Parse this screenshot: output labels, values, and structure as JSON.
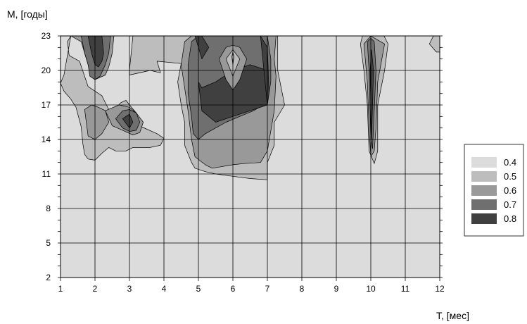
{
  "chart_data": {
    "type": "heatmap",
    "title": "",
    "xlabel": "T, [мес]",
    "ylabel": "M, [годы]",
    "xlim": [
      1,
      12
    ],
    "ylim": [
      2,
      23
    ],
    "x_ticks": [
      "1",
      "2",
      "3",
      "4",
      "5",
      "6",
      "7",
      "8",
      "9",
      "10",
      "11",
      "12"
    ],
    "y_ticks": [
      "2",
      "5",
      "8",
      "11",
      "14",
      "17",
      "20",
      "23"
    ],
    "grid": true,
    "colormap": [
      "#dcdcdc",
      "#bdbdbd",
      "#999999",
      "#6f6f6f",
      "#404040"
    ],
    "legend_position": "right",
    "legend": [
      {
        "label": "0.4",
        "color": "#dcdcdc"
      },
      {
        "label": "0.5",
        "color": "#bdbdbd"
      },
      {
        "label": "0.6",
        "color": "#999999"
      },
      {
        "label": "0.7",
        "color": "#6f6f6f"
      },
      {
        "label": "0.8",
        "color": "#404040"
      }
    ],
    "background_level": 0,
    "regions": [
      {
        "x": [
          1.3,
          1.2,
          1.25,
          1.55,
          1.8,
          2.2,
          2.4,
          2.55,
          2.75,
          2.9,
          3.0,
          3.2,
          3.35,
          3.8,
          4.0,
          3.9,
          3.6,
          3.1,
          2.9,
          2.6,
          2.4,
          2.2,
          2.1,
          2.0,
          1.8,
          1.7,
          1.65,
          1.6,
          1.45,
          1.3,
          1.1,
          1.0,
          1.1,
          1.3
        ],
        "y": [
          23,
          22.5,
          21.3,
          20.8,
          18.6,
          17.8,
          16.6,
          16.6,
          17.2,
          17.4,
          17.0,
          16.3,
          15.1,
          14.5,
          14.1,
          13.5,
          13.3,
          13.3,
          13.0,
          13.0,
          13.3,
          12.8,
          12.5,
          12.2,
          12.3,
          12.7,
          13.6,
          15.1,
          16.8,
          17.5,
          18.2,
          18.9,
          19.6,
          23
        ],
        "level": 1
      },
      {
        "x": [
          3.1,
          3.0,
          3.0,
          3.6,
          3.9,
          3.8,
          4.5,
          4.4,
          4.5,
          4.6,
          4.6,
          4.8,
          4.9,
          5.2,
          5.5,
          6.0,
          6.5,
          7.0,
          7.0,
          7.2,
          7.2,
          7.5,
          7.3,
          7.3,
          4.4,
          3.5,
          3.1
        ],
        "y": [
          23,
          20.0,
          19.6,
          20.0,
          19.8,
          20.8,
          20.6,
          19.0,
          17.0,
          15.5,
          13.5,
          12.0,
          11.5,
          11.2,
          11.0,
          10.8,
          10.6,
          10.5,
          12.0,
          13.5,
          15.5,
          17.0,
          20.0,
          23,
          23,
          23,
          23
        ],
        "level": 1
      },
      {
        "x": [
          9.7,
          9.8,
          9.9,
          9.95,
          10.1,
          10.2,
          10.2,
          10.4,
          10.5,
          10.3,
          10.0,
          9.8,
          9.7
        ],
        "y": [
          22.3,
          20.0,
          17.0,
          13.0,
          11.9,
          13.0,
          17.0,
          20.0,
          22.3,
          23.5,
          24.5,
          23.5,
          22.3
        ],
        "level": 1
      },
      {
        "x": [
          11.7,
          11.9,
          12.0,
          12.0,
          11.9,
          11.7
        ],
        "y": [
          22.3,
          21.6,
          21.6,
          23,
          23.5,
          22.3
        ],
        "level": 1
      },
      {
        "x": [
          1.3,
          1.6,
          1.7,
          1.8,
          1.9,
          2.0,
          2.3,
          2.4,
          2.5,
          2.55,
          2.6,
          2.5,
          2.3,
          1.6,
          1.3
        ],
        "y": [
          23,
          22.5,
          21.5,
          20.5,
          19.5,
          19.2,
          19.6,
          20.3,
          21.5,
          23,
          23,
          23,
          23,
          23,
          23
        ],
        "level": 2
      },
      {
        "x": [
          1.7,
          1.9,
          2.1,
          2.3,
          2.4,
          2.2,
          2.0,
          1.8,
          1.7
        ],
        "y": [
          16.6,
          17.0,
          16.8,
          16.5,
          15.5,
          14.5,
          14.0,
          14.3,
          16.6
        ],
        "level": 2
      },
      {
        "x": [
          2.3,
          2.7,
          3.0,
          3.2,
          3.4,
          3.3,
          3.1,
          2.8,
          2.5,
          2.3
        ],
        "y": [
          16.5,
          17.0,
          16.8,
          16.3,
          15.5,
          14.6,
          14.4,
          14.8,
          15.2,
          16.5
        ],
        "level": 2
      },
      {
        "x": [
          4.6,
          4.5,
          4.6,
          4.7,
          4.8,
          4.9,
          5.2,
          5.4,
          5.6,
          6.0,
          6.3,
          6.8,
          7.0,
          7.2,
          7.25,
          7.2,
          7.25,
          4.8,
          4.6
        ],
        "y": [
          22.5,
          20.5,
          18.5,
          16.5,
          14.0,
          12.5,
          11.8,
          11.5,
          11.6,
          11.8,
          11.9,
          12.0,
          13.0,
          16.5,
          19.5,
          21.0,
          23,
          23,
          22.5
        ],
        "level": 2
      },
      {
        "x": [
          9.8,
          9.9,
          9.95,
          10.0,
          10.1,
          10.15,
          10.2,
          10.4,
          10.0,
          9.8
        ],
        "y": [
          22.3,
          19.0,
          15.0,
          12.5,
          13.0,
          15.0,
          19.0,
          22.3,
          23.0,
          22.3
        ],
        "level": 2
      },
      {
        "x": [
          1.6,
          1.7,
          1.8,
          1.85,
          2.0,
          2.15,
          2.3,
          2.4,
          2.45,
          2.4,
          1.6
        ],
        "y": [
          23,
          21.5,
          20.5,
          19.5,
          19.2,
          19.5,
          20.5,
          21.5,
          23,
          23,
          23
        ],
        "level": 3
      },
      {
        "x": [
          2.6,
          2.8,
          3.0,
          3.2,
          3.3,
          3.2,
          3.0,
          2.8,
          2.6
        ],
        "y": [
          15.8,
          16.5,
          16.6,
          16.3,
          15.5,
          14.8,
          14.7,
          15.0,
          15.8
        ],
        "level": 3
      },
      {
        "x": [
          4.8,
          4.7,
          4.7,
          4.8,
          4.85,
          5.0,
          5.2,
          5.5,
          5.8,
          6.2,
          6.6,
          7.0,
          7.1,
          7.1,
          7.0,
          6.9,
          5.0,
          4.8
        ],
        "y": [
          22.5,
          20.5,
          18.0,
          16.0,
          14.5,
          14.0,
          14.5,
          15.0,
          15.5,
          16.0,
          16.5,
          17.2,
          19.0,
          21.0,
          23,
          23,
          23,
          22.5
        ],
        "level": 3
      },
      {
        "x": [
          9.9,
          9.95,
          10.0,
          10.05,
          10.15,
          10.1,
          10.0,
          9.9
        ],
        "y": [
          22.5,
          20.0,
          14.0,
          13.2,
          20.0,
          22.5,
          22.8,
          22.5
        ],
        "level": 3
      },
      {
        "x": [
          1.8,
          1.9,
          2.0,
          2.1,
          2.2,
          2.25,
          2.2,
          1.8
        ],
        "y": [
          23,
          21.5,
          20.5,
          20.3,
          20.8,
          21.5,
          23,
          23
        ],
        "level": 4
      },
      {
        "x": [
          2.8,
          3.0,
          3.1,
          3.0,
          2.8
        ],
        "y": [
          15.8,
          16.2,
          15.5,
          15.0,
          15.8
        ],
        "level": 4
      },
      {
        "x": [
          4.9,
          5.0,
          5.1,
          5.3,
          5.1,
          5.0,
          4.9
        ],
        "y": [
          23,
          22.0,
          21.0,
          22.0,
          23,
          23,
          23
        ],
        "level": 4
      },
      {
        "x": [
          5.0,
          5.1,
          5.5,
          6.0,
          6.5,
          7.0,
          7.0,
          6.5,
          6.0,
          5.5,
          5.1,
          5.0
        ],
        "y": [
          19.0,
          16.5,
          15.5,
          16.0,
          16.5,
          17.0,
          20.0,
          20.5,
          20.0,
          19.0,
          18.5,
          19.0
        ],
        "level": 4
      },
      {
        "x": [
          6.8,
          7.0,
          7.05,
          7.0,
          6.8
        ],
        "y": [
          23,
          22,
          18,
          17,
          23
        ],
        "level": 4
      },
      {
        "x": [
          9.98,
          10.02,
          10.08,
          10.02,
          9.98
        ],
        "y": [
          20.0,
          14.0,
          20.0,
          21.8,
          20.0
        ],
        "level": 4
      },
      {
        "x": [
          5.6,
          5.8,
          6.0,
          6.2,
          6.4,
          6.2,
          6.0,
          5.8,
          5.6
        ],
        "y": [
          21.0,
          22.0,
          22.2,
          22.0,
          21.0,
          19.2,
          18.3,
          19.2,
          21.0
        ],
        "level": 2
      },
      {
        "x": [
          5.8,
          6.0,
          6.2,
          6.0,
          5.8
        ],
        "y": [
          21.0,
          21.8,
          21.0,
          19.5,
          21.0
        ],
        "level": 1
      },
      {
        "x": [
          5.97,
          6.0,
          6.03,
          6.0,
          5.97
        ],
        "y": [
          21.2,
          21.6,
          21.2,
          20.5,
          21.2
        ],
        "level": 0
      }
    ]
  },
  "legend_frame": {
    "visible": true
  }
}
